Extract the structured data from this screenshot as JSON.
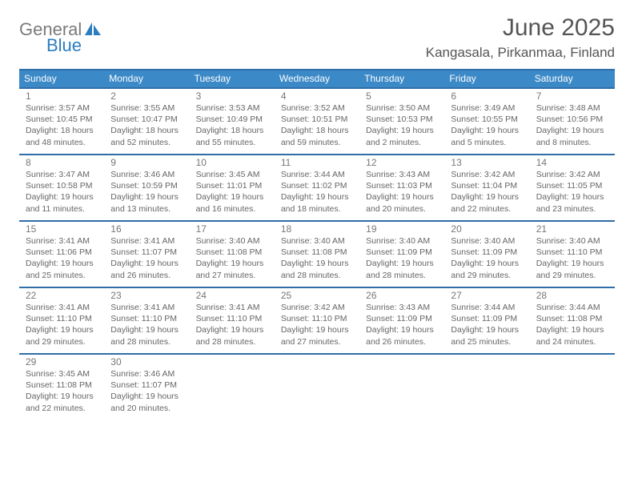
{
  "logo": {
    "text_top": "General",
    "text_bottom": "Blue"
  },
  "title": "June 2025",
  "location": "Kangasala, Pirkanmaa, Finland",
  "colors": {
    "header_blue": "#3b89c7",
    "divider_blue": "#2f6ea8",
    "logo_gray": "#7a7a7a",
    "logo_blue": "#2b7dbf",
    "text": "#555555"
  },
  "dow": [
    "Sunday",
    "Monday",
    "Tuesday",
    "Wednesday",
    "Thursday",
    "Friday",
    "Saturday"
  ],
  "weeks": [
    [
      {
        "n": "1",
        "sr": "3:57 AM",
        "ss": "10:45 PM",
        "dl": "18 hours and 48 minutes."
      },
      {
        "n": "2",
        "sr": "3:55 AM",
        "ss": "10:47 PM",
        "dl": "18 hours and 52 minutes."
      },
      {
        "n": "3",
        "sr": "3:53 AM",
        "ss": "10:49 PM",
        "dl": "18 hours and 55 minutes."
      },
      {
        "n": "4",
        "sr": "3:52 AM",
        "ss": "10:51 PM",
        "dl": "18 hours and 59 minutes."
      },
      {
        "n": "5",
        "sr": "3:50 AM",
        "ss": "10:53 PM",
        "dl": "19 hours and 2 minutes."
      },
      {
        "n": "6",
        "sr": "3:49 AM",
        "ss": "10:55 PM",
        "dl": "19 hours and 5 minutes."
      },
      {
        "n": "7",
        "sr": "3:48 AM",
        "ss": "10:56 PM",
        "dl": "19 hours and 8 minutes."
      }
    ],
    [
      {
        "n": "8",
        "sr": "3:47 AM",
        "ss": "10:58 PM",
        "dl": "19 hours and 11 minutes."
      },
      {
        "n": "9",
        "sr": "3:46 AM",
        "ss": "10:59 PM",
        "dl": "19 hours and 13 minutes."
      },
      {
        "n": "10",
        "sr": "3:45 AM",
        "ss": "11:01 PM",
        "dl": "19 hours and 16 minutes."
      },
      {
        "n": "11",
        "sr": "3:44 AM",
        "ss": "11:02 PM",
        "dl": "19 hours and 18 minutes."
      },
      {
        "n": "12",
        "sr": "3:43 AM",
        "ss": "11:03 PM",
        "dl": "19 hours and 20 minutes."
      },
      {
        "n": "13",
        "sr": "3:42 AM",
        "ss": "11:04 PM",
        "dl": "19 hours and 22 minutes."
      },
      {
        "n": "14",
        "sr": "3:42 AM",
        "ss": "11:05 PM",
        "dl": "19 hours and 23 minutes."
      }
    ],
    [
      {
        "n": "15",
        "sr": "3:41 AM",
        "ss": "11:06 PM",
        "dl": "19 hours and 25 minutes."
      },
      {
        "n": "16",
        "sr": "3:41 AM",
        "ss": "11:07 PM",
        "dl": "19 hours and 26 minutes."
      },
      {
        "n": "17",
        "sr": "3:40 AM",
        "ss": "11:08 PM",
        "dl": "19 hours and 27 minutes."
      },
      {
        "n": "18",
        "sr": "3:40 AM",
        "ss": "11:08 PM",
        "dl": "19 hours and 28 minutes."
      },
      {
        "n": "19",
        "sr": "3:40 AM",
        "ss": "11:09 PM",
        "dl": "19 hours and 28 minutes."
      },
      {
        "n": "20",
        "sr": "3:40 AM",
        "ss": "11:09 PM",
        "dl": "19 hours and 29 minutes."
      },
      {
        "n": "21",
        "sr": "3:40 AM",
        "ss": "11:10 PM",
        "dl": "19 hours and 29 minutes."
      }
    ],
    [
      {
        "n": "22",
        "sr": "3:41 AM",
        "ss": "11:10 PM",
        "dl": "19 hours and 29 minutes."
      },
      {
        "n": "23",
        "sr": "3:41 AM",
        "ss": "11:10 PM",
        "dl": "19 hours and 28 minutes."
      },
      {
        "n": "24",
        "sr": "3:41 AM",
        "ss": "11:10 PM",
        "dl": "19 hours and 28 minutes."
      },
      {
        "n": "25",
        "sr": "3:42 AM",
        "ss": "11:10 PM",
        "dl": "19 hours and 27 minutes."
      },
      {
        "n": "26",
        "sr": "3:43 AM",
        "ss": "11:09 PM",
        "dl": "19 hours and 26 minutes."
      },
      {
        "n": "27",
        "sr": "3:44 AM",
        "ss": "11:09 PM",
        "dl": "19 hours and 25 minutes."
      },
      {
        "n": "28",
        "sr": "3:44 AM",
        "ss": "11:08 PM",
        "dl": "19 hours and 24 minutes."
      }
    ],
    [
      {
        "n": "29",
        "sr": "3:45 AM",
        "ss": "11:08 PM",
        "dl": "19 hours and 22 minutes."
      },
      {
        "n": "30",
        "sr": "3:46 AM",
        "ss": "11:07 PM",
        "dl": "19 hours and 20 minutes."
      },
      null,
      null,
      null,
      null,
      null
    ]
  ],
  "labels": {
    "sunrise": "Sunrise: ",
    "sunset": "Sunset: ",
    "daylight": "Daylight: "
  }
}
